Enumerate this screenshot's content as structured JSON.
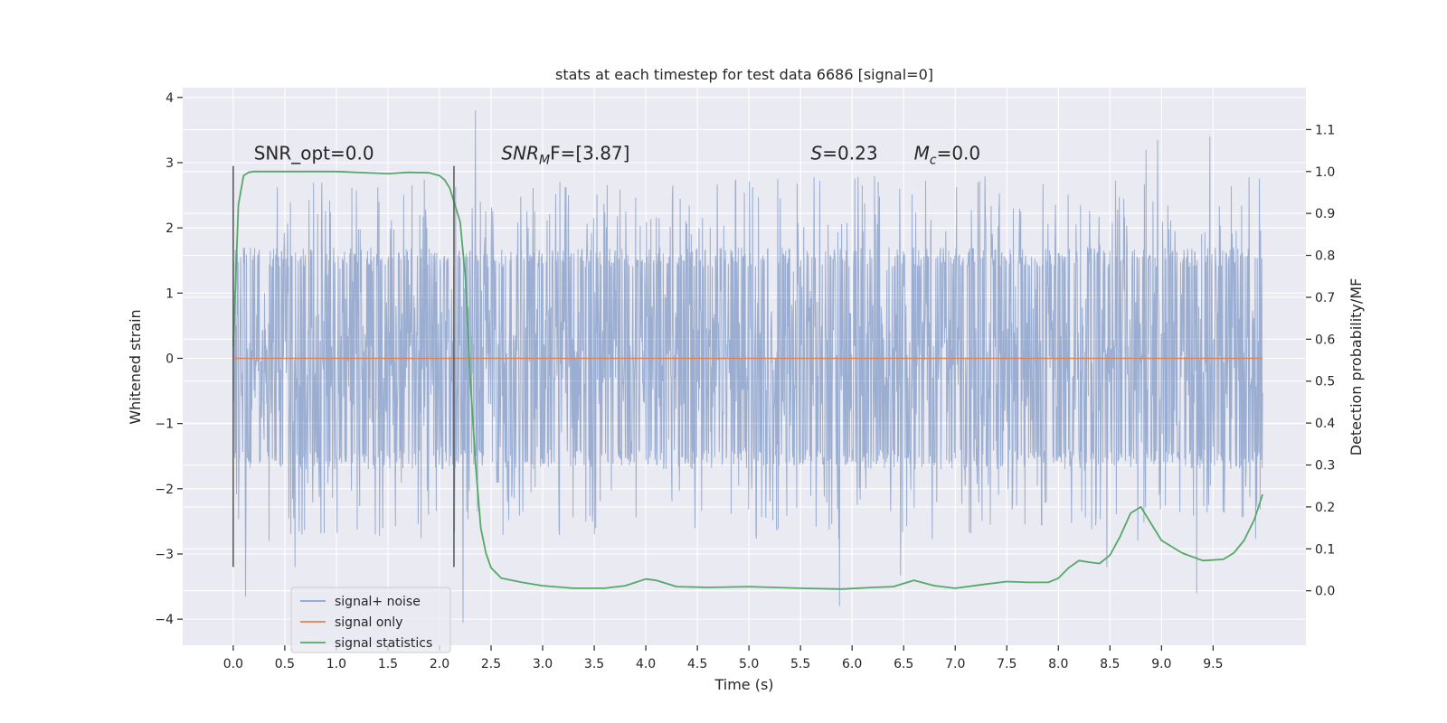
{
  "chart_data": {
    "type": "line",
    "title": "stats at each timestep for test data 6686 [signal=0]",
    "xlabel": "Time (s)",
    "ylabel_left": "Whitened strain",
    "ylabel_right": "Detection probability/MF",
    "xlim": [
      -0.49,
      10.4
    ],
    "ylim_left": [
      -4.4,
      4.15
    ],
    "ylim_right": [
      -0.13,
      1.2
    ],
    "x_ticks": [
      0.0,
      0.5,
      1.0,
      1.5,
      2.0,
      2.5,
      3.0,
      3.5,
      4.0,
      4.5,
      5.0,
      5.5,
      6.0,
      6.5,
      7.0,
      7.5,
      8.0,
      8.5,
      9.0,
      9.5
    ],
    "x_tick_labels": [
      "0.0",
      "0.5",
      "1.0",
      "1.5",
      "2.0",
      "2.5",
      "3.0",
      "3.5",
      "4.0",
      "4.5",
      "5.0",
      "5.5",
      "6.0",
      "6.5",
      "7.0",
      "7.5",
      "8.0",
      "8.5",
      "9.0",
      "9.5"
    ],
    "y_ticks_left": [
      -4,
      -3,
      -2,
      -1,
      0,
      1,
      2,
      3,
      4
    ],
    "y_tick_labels_left": [
      "−4",
      "−3",
      "−2",
      "−1",
      "0",
      "1",
      "2",
      "3",
      "4"
    ],
    "y_ticks_right": [
      0.0,
      0.1,
      0.2,
      0.3,
      0.4,
      0.5,
      0.6,
      0.7,
      0.8,
      0.9,
      1.0,
      1.1
    ],
    "y_tick_labels_right": [
      "0.0",
      "0.1",
      "0.2",
      "0.3",
      "0.4",
      "0.5",
      "0.6",
      "0.7",
      "0.8",
      "0.9",
      "1.0",
      "1.1"
    ],
    "grid": true,
    "legend_position": "lower-left",
    "series": [
      {
        "name": "signal+ noise",
        "kind": "noise-trace",
        "axis": "left",
        "color": "#4c72b0",
        "x_range": [
          0.0,
          9.98
        ],
        "typical_range": [
          -1.7,
          1.7
        ],
        "envelope_max": 3.8,
        "envelope_min": -4.05,
        "peaks": [
          {
            "x": 0.12,
            "y": -3.65
          },
          {
            "x": 0.6,
            "y": -3.2
          },
          {
            "x": 2.23,
            "y": -4.05
          },
          {
            "x": 2.35,
            "y": 3.8
          },
          {
            "x": 5.88,
            "y": -3.8
          },
          {
            "x": 6.47,
            "y": -3.33
          },
          {
            "x": 8.47,
            "y": -3.2
          },
          {
            "x": 8.96,
            "y": 3.35
          },
          {
            "x": 9.34,
            "y": -3.6
          },
          {
            "x": 9.47,
            "y": 3.4
          },
          {
            "x": 8.85,
            "y": 3.2
          }
        ]
      },
      {
        "name": "signal only",
        "kind": "line",
        "axis": "left",
        "color": "#dd8452",
        "x": [
          0.0,
          9.98
        ],
        "y": [
          0.0,
          0.0
        ]
      },
      {
        "name": "signal statistics",
        "kind": "line",
        "axis": "right",
        "color": "#55a868",
        "x": [
          0.0,
          0.05,
          0.1,
          0.15,
          0.2,
          0.3,
          0.5,
          1.0,
          1.5,
          1.7,
          1.9,
          2.0,
          2.05,
          2.1,
          2.15,
          2.2,
          2.25,
          2.3,
          2.35,
          2.4,
          2.45,
          2.5,
          2.6,
          2.8,
          3.0,
          3.3,
          3.6,
          3.8,
          4.0,
          4.1,
          4.3,
          4.6,
          5.0,
          5.5,
          5.9,
          6.2,
          6.4,
          6.6,
          6.8,
          7.0,
          7.3,
          7.5,
          7.7,
          7.9,
          8.0,
          8.1,
          8.2,
          8.3,
          8.4,
          8.5,
          8.6,
          8.7,
          8.8,
          8.9,
          9.0,
          9.2,
          9.4,
          9.6,
          9.7,
          9.8,
          9.9,
          9.98
        ],
        "y": [
          0.58,
          0.92,
          0.99,
          0.998,
          1.0,
          1.0,
          1.0,
          1.0,
          0.995,
          0.998,
          0.997,
          0.99,
          0.98,
          0.96,
          0.92,
          0.88,
          0.75,
          0.5,
          0.3,
          0.15,
          0.09,
          0.055,
          0.03,
          0.02,
          0.012,
          0.006,
          0.006,
          0.012,
          0.028,
          0.025,
          0.01,
          0.008,
          0.01,
          0.006,
          0.004,
          0.008,
          0.01,
          0.025,
          0.012,
          0.006,
          0.016,
          0.022,
          0.02,
          0.02,
          0.03,
          0.055,
          0.072,
          0.068,
          0.065,
          0.085,
          0.13,
          0.185,
          0.2,
          0.16,
          0.12,
          0.09,
          0.072,
          0.075,
          0.09,
          0.12,
          0.17,
          0.23
        ]
      }
    ],
    "vertical_lines": [
      {
        "x": 0.0,
        "y_range": [
          -3.2,
          2.95
        ]
      },
      {
        "x": 2.14,
        "y_range": [
          -3.2,
          2.95
        ]
      }
    ],
    "annotations": [
      {
        "x": 0.2,
        "y": 3.05,
        "text": "SNR_opt=0.0",
        "style": "plain"
      },
      {
        "x": 2.6,
        "y": 3.05,
        "sym": "SNR",
        "sub": "M",
        "rest": "F=[3.87]",
        "style": "math"
      },
      {
        "x": 5.6,
        "y": 3.05,
        "sym": "S",
        "sub": "",
        "rest": "=0.23",
        "style": "math"
      },
      {
        "x": 6.6,
        "y": 3.05,
        "sym": "M",
        "sub": "c",
        "rest": "=0.0",
        "style": "math"
      }
    ]
  }
}
